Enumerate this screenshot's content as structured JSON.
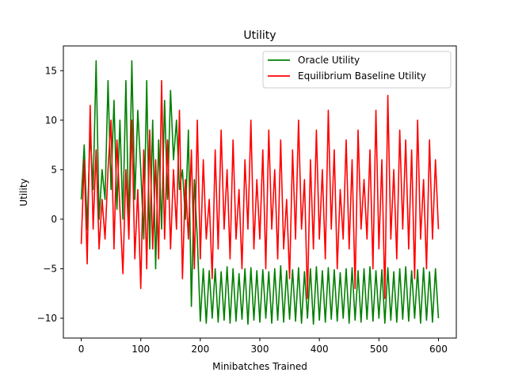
{
  "chart_data": {
    "type": "line",
    "title": "Utility",
    "xlabel": "Minibatches Trained",
    "ylabel": "Utility",
    "xlim": [
      -30,
      630
    ],
    "ylim": [
      -12,
      17.5
    ],
    "xticks": [
      0,
      100,
      200,
      300,
      400,
      500,
      600
    ],
    "yticks": [
      -10,
      -5,
      0,
      5,
      10,
      15
    ],
    "grid": false,
    "legend_position": "top-right",
    "series": [
      {
        "name": "Oracle Utility",
        "color": "#008000",
        "x": [
          0,
          5,
          10,
          15,
          20,
          25,
          30,
          35,
          40,
          45,
          50,
          55,
          60,
          65,
          70,
          75,
          80,
          85,
          90,
          95,
          100,
          105,
          110,
          115,
          120,
          125,
          130,
          135,
          140,
          145,
          150,
          155,
          160,
          165,
          170,
          175,
          180,
          185,
          190,
          195,
          200,
          205,
          210,
          215,
          220,
          225,
          230,
          235,
          240,
          245,
          250,
          255,
          260,
          265,
          270,
          275,
          280,
          285,
          290,
          295,
          300,
          305,
          310,
          315,
          320,
          325,
          330,
          335,
          340,
          345,
          350,
          355,
          360,
          365,
          370,
          375,
          380,
          385,
          390,
          395,
          400,
          405,
          410,
          415,
          420,
          425,
          430,
          435,
          440,
          445,
          450,
          455,
          460,
          465,
          470,
          475,
          480,
          485,
          490,
          495,
          500,
          505,
          510,
          515,
          520,
          525,
          530,
          535,
          540,
          545,
          550,
          555,
          560,
          565,
          570,
          575,
          580,
          585,
          590,
          595,
          600
        ],
        "y": [
          2,
          7.5,
          -1,
          9,
          3,
          16,
          0,
          5,
          2,
          14,
          3,
          12,
          1,
          10,
          0,
          14,
          -1,
          16,
          2,
          11,
          5,
          -2,
          14,
          -3,
          10,
          -5,
          8,
          -1,
          12,
          2,
          13,
          6,
          10,
          3,
          5,
          0,
          9,
          -8.8,
          4,
          -2,
          -10.3,
          -5,
          -10.5,
          -5.2,
          -10,
          -5,
          -10.4,
          -5.3,
          -10.2,
          -4.8,
          -10.5,
          -5,
          -10.3,
          -5.5,
          -10.1,
          -5,
          -10.6,
          -4.9,
          -10.2,
          -5.2,
          -10.4,
          -5.1,
          -10,
          -5.3,
          -10.5,
          -5,
          -10.2,
          -4.7,
          -10.4,
          -5.2,
          -10.1,
          -5.1,
          -10.3,
          -4.9,
          -10.5,
          -5.3,
          -10,
          -5,
          -10.6,
          -4.8,
          -10.2,
          -5.2,
          -10.4,
          -4.9,
          -10.1,
          -5.1,
          -10.3,
          -5.4,
          -10,
          -5,
          -10.5,
          -4.9,
          -10.2,
          -5.2,
          -10.4,
          -5,
          -10.1,
          -4.8,
          -10.3,
          -5.2,
          -10,
          -5.1,
          -10.5,
          -4.9,
          -10.2,
          -5.3,
          -10.4,
          -5,
          -10.1,
          -4.8,
          -10.3,
          -5.2,
          -10,
          -5.1,
          -10.5,
          -4.9,
          -10.2,
          -5.3,
          -10.4,
          -5,
          -10.0
        ]
      },
      {
        "name": "Equilibrium Baseline Utility",
        "color": "#ff0000",
        "x": [
          0,
          5,
          10,
          15,
          20,
          25,
          30,
          35,
          40,
          45,
          50,
          55,
          60,
          65,
          70,
          75,
          80,
          85,
          90,
          95,
          100,
          105,
          110,
          115,
          120,
          125,
          130,
          135,
          140,
          145,
          150,
          155,
          160,
          165,
          170,
          175,
          180,
          185,
          190,
          195,
          200,
          205,
          210,
          215,
          220,
          225,
          230,
          235,
          240,
          245,
          250,
          255,
          260,
          265,
          270,
          275,
          280,
          285,
          290,
          295,
          300,
          305,
          310,
          315,
          320,
          325,
          330,
          335,
          340,
          345,
          350,
          355,
          360,
          365,
          370,
          375,
          380,
          385,
          390,
          395,
          400,
          405,
          410,
          415,
          420,
          425,
          430,
          435,
          440,
          445,
          450,
          455,
          460,
          465,
          470,
          475,
          480,
          485,
          490,
          495,
          500,
          505,
          510,
          515,
          520,
          525,
          530,
          535,
          540,
          545,
          550,
          555,
          560,
          565,
          570,
          575,
          580,
          585,
          590,
          595,
          600
        ],
        "y": [
          -2.5,
          6,
          -4.5,
          11.5,
          -1,
          7,
          -3,
          2,
          -2,
          5,
          10,
          -3,
          8,
          1,
          -5.5,
          5,
          -2,
          10,
          -4,
          3,
          -7,
          7,
          -5,
          9,
          -3,
          6,
          -4,
          14,
          -2,
          8,
          -3,
          5,
          -1,
          11,
          -6,
          4,
          -2,
          7,
          -5,
          10,
          -4,
          6,
          -2,
          2,
          -6,
          7,
          -3,
          9,
          -1,
          5,
          -4,
          8,
          -2,
          3,
          -5,
          6,
          -1,
          10,
          -3,
          4,
          -2,
          7,
          -5,
          9,
          -1,
          5,
          -4,
          8,
          -3,
          2,
          -6,
          7,
          -2,
          10,
          -1,
          4,
          -8,
          6,
          -3,
          9,
          -2,
          5,
          -4,
          11,
          -1,
          7,
          -5,
          3,
          -2,
          8,
          -3,
          6,
          -7,
          9,
          -1,
          4,
          -2,
          7,
          -5,
          11,
          -3,
          6,
          -8,
          12.5,
          -2,
          5,
          -4,
          9,
          -1,
          8,
          -3,
          7,
          -6,
          10,
          -2,
          4,
          -5,
          8,
          -2,
          6,
          -1
        ]
      }
    ]
  }
}
